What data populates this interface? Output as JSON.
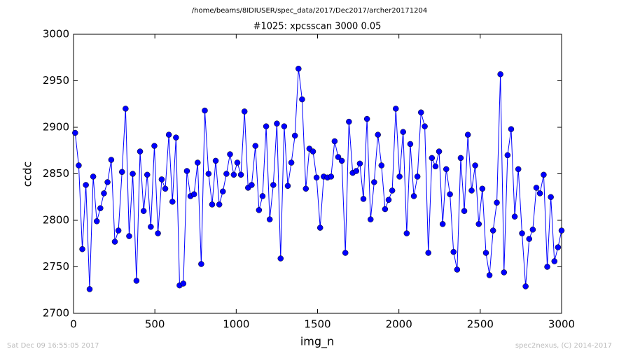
{
  "chart_data": {
    "type": "line",
    "title": "/home/beams/8IDIUSER/spec_data/2017/Dec2017/archer20171204",
    "subtitle": "#1025: xpcsscan 3000 0.05",
    "x_label": "img_n",
    "y_label": "ccdc",
    "annotations": [
      "Sat Dec 09 16:55:05 2017",
      "spec2nexus, (C) 2014-2017"
    ],
    "color": "#0000ff",
    "x": [
      10,
      32,
      54,
      76,
      99,
      121,
      143,
      165,
      187,
      209,
      232,
      254,
      276,
      298,
      320,
      342,
      364,
      387,
      409,
      431,
      453,
      475,
      497,
      519,
      542,
      564,
      586,
      608,
      630,
      652,
      675,
      697,
      719,
      741,
      763,
      785,
      807,
      830,
      852,
      874,
      896,
      918,
      940,
      962,
      985,
      1007,
      1029,
      1051,
      1073,
      1095,
      1118,
      1140,
      1162,
      1184,
      1206,
      1228,
      1250,
      1273,
      1295,
      1317,
      1339,
      1361,
      1383,
      1405,
      1428,
      1450,
      1472,
      1494,
      1516,
      1538,
      1561,
      1583,
      1605,
      1627,
      1649,
      1671,
      1693,
      1716,
      1738,
      1760,
      1782,
      1804,
      1826,
      1848,
      1871,
      1893,
      1915,
      1937,
      1959,
      1981,
      2004,
      2026,
      2048,
      2070,
      2092,
      2114,
      2136,
      2159,
      2181,
      2203,
      2225,
      2247,
      2269,
      2291,
      2314,
      2336,
      2358,
      2380,
      2402,
      2424,
      2447,
      2469,
      2491,
      2513,
      2535,
      2557,
      2579,
      2602,
      2624,
      2646,
      2668,
      2690,
      2712,
      2734,
      2757,
      2779,
      2801,
      2823,
      2845,
      2867,
      2890,
      2912,
      2934,
      2956,
      2978,
      3000
    ],
    "values": [
      2894,
      2859,
      2769,
      2838,
      2726,
      2847,
      2799,
      2813,
      2829,
      2841,
      2865,
      2777,
      2789,
      2852,
      2920,
      2783,
      2850,
      2735,
      2874,
      2810,
      2849,
      2793,
      2880,
      2786,
      2844,
      2834,
      2892,
      2820,
      2889,
      2730,
      2732,
      2853,
      2826,
      2828,
      2862,
      2753,
      2918,
      2850,
      2817,
      2864,
      2817,
      2831,
      2850,
      2871,
      2849,
      2862,
      2849,
      2917,
      2835,
      2838,
      2880,
      2811,
      2826,
      2901,
      2801,
      2838,
      2904,
      2759,
      2901,
      2837,
      2862,
      2891,
      2963,
      2930,
      2834,
      2877,
      2874,
      2846,
      2792,
      2847,
      2846,
      2847,
      2885,
      2868,
      2864,
      2765,
      2906,
      2851,
      2853,
      2861,
      2823,
      2909,
      2801,
      2841,
      2892,
      2859,
      2812,
      2822,
      2832,
      2920,
      2847,
      2895,
      2786,
      2882,
      2826,
      2847,
      2916,
      2901,
      2765,
      2867,
      2858,
      2874,
      2796,
      2855,
      2828,
      2766,
      2747,
      2867,
      2810,
      2892,
      2832,
      2859,
      2796,
      2834,
      2765,
      2741,
      2789,
      2819,
      2957,
      2744,
      2870,
      2898,
      2804,
      2855,
      2786,
      2729,
      2780,
      2790,
      2835,
      2829,
      2849,
      2750,
      2825,
      2756,
      2771,
      2789
    ],
    "xlim": [
      0,
      3000
    ],
    "ylim": [
      2700,
      3000
    ],
    "xticks": [
      0,
      500,
      1000,
      1500,
      2000,
      2500,
      3000
    ],
    "yticks": [
      2700,
      2750,
      2800,
      2850,
      2900,
      2950,
      3000
    ]
  }
}
